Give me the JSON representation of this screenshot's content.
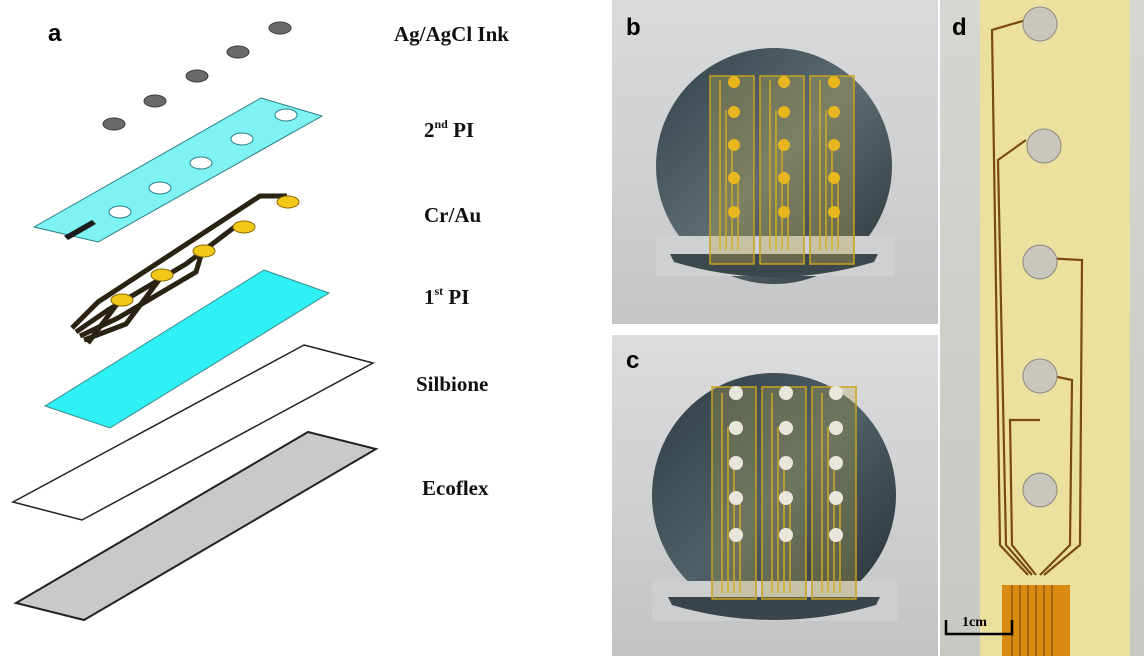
{
  "panels": {
    "a": {
      "letter": "a",
      "layers": [
        {
          "label": "Ag/AgCl Ink",
          "sup": "",
          "rest": ""
        },
        {
          "label": "2",
          "sup": "nd",
          "rest": " PI"
        },
        {
          "label": "Cr/Au",
          "sup": "",
          "rest": ""
        },
        {
          "label": "1",
          "sup": "st",
          "rest": " PI"
        },
        {
          "label": "Silbione",
          "sup": "",
          "rest": ""
        },
        {
          "label": "Ecoflex",
          "sup": "",
          "rest": ""
        }
      ]
    },
    "b": {
      "letter": "b"
    },
    "c": {
      "letter": "c"
    },
    "d": {
      "letter": "d",
      "scale_bar": "1cm"
    }
  },
  "colors": {
    "polyimide_layer": "#2ff0f4",
    "gold_pads": "#f2c81a",
    "ag_agcl_ink": "#6a6a6a",
    "ecoflex_layer": "#c8c8c8"
  }
}
